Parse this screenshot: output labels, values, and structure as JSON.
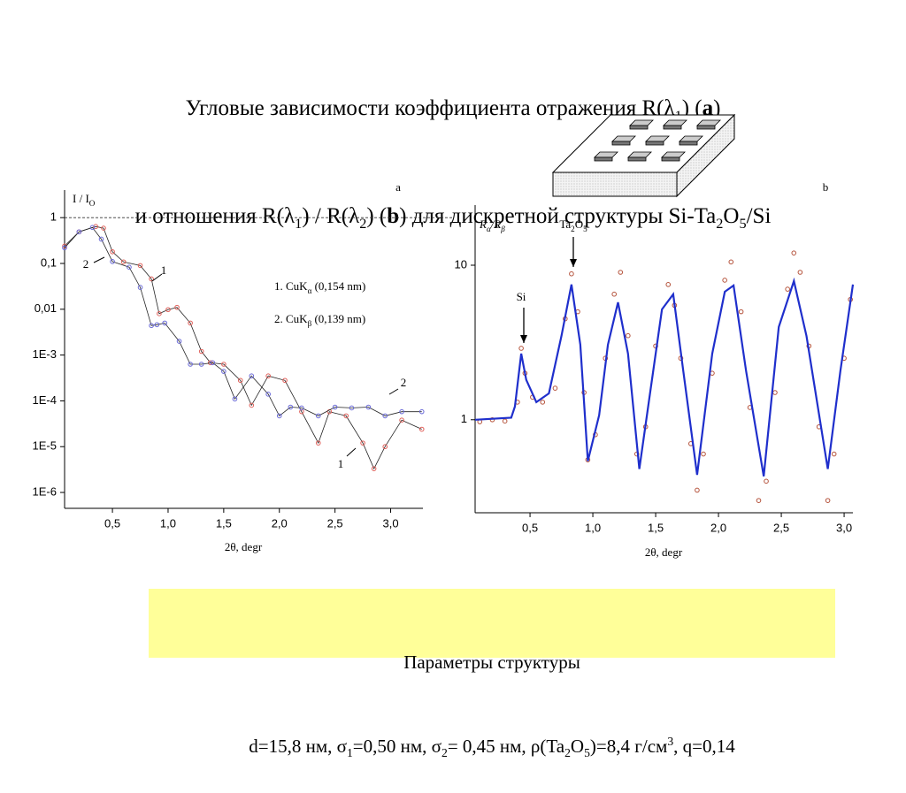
{
  "title": {
    "line1": [
      "Угловые зависимости коэффициента отражения R(λ",
      "1",
      ") (",
      "a",
      ")"
    ],
    "line2": [
      "и отношения R(λ",
      "1",
      ") / R(λ",
      "2",
      ") (",
      "b",
      ") для дискретной структуры Si-Ta",
      "2",
      "O",
      "5",
      "/Si"
    ]
  },
  "chart_data": [
    {
      "type": "line",
      "panel_label": "a",
      "y_label": [
        "I / I",
        "O"
      ],
      "x_label": "2θ, degr",
      "log_y": true,
      "xlim": [
        0.07,
        3.29
      ],
      "ylim": [
        4.5e-07,
        4
      ],
      "xticks": [
        {
          "value": 0.5,
          "label": "0,5"
        },
        {
          "value": 1.0,
          "label": "1,0"
        },
        {
          "value": 1.5,
          "label": "1,5"
        },
        {
          "value": 2.0,
          "label": "2,0"
        },
        {
          "value": 2.5,
          "label": "2,5"
        },
        {
          "value": 3.0,
          "label": "3,0"
        }
      ],
      "yticks": [
        1,
        {
          "value": 0.1,
          "label": "0,1"
        },
        {
          "value": 0.01,
          "label": "0,01"
        },
        {
          "value": 0.001,
          "label": "1E-3"
        },
        {
          "value": 0.0001,
          "label": "1E-4"
        },
        {
          "value": 1e-05,
          "label": "1E-5"
        },
        {
          "value": 1e-06,
          "label": "1E-6"
        }
      ],
      "reference_line": 1,
      "series": [
        {
          "name": [
            "1. CuK",
            "α",
            " (0,154 nm)"
          ],
          "label": "1",
          "color": "#e0605a",
          "x": [
            0.07,
            0.2,
            0.35,
            0.42,
            0.5,
            0.6,
            0.75,
            0.85,
            0.92,
            1.0,
            1.08,
            1.2,
            1.3,
            1.38,
            1.5,
            1.65,
            1.75,
            1.9,
            2.05,
            2.2,
            2.35,
            2.45,
            2.6,
            2.75,
            2.85,
            2.95,
            3.1,
            3.28
          ],
          "values": [
            0.24,
            0.49,
            0.64,
            0.59,
            0.18,
            0.108,
            0.09,
            0.046,
            0.008,
            0.0098,
            0.011,
            0.005,
            0.0012,
            0.00068,
            0.00063,
            0.00028,
            8e-05,
            0.00035,
            0.00028,
            5.8e-05,
            1.2e-05,
            5.8e-05,
            4.7e-05,
            1.2e-05,
            3.3e-06,
            1e-05,
            3.8e-05,
            2.4e-05
          ]
        },
        {
          "name": [
            "2. CuK",
            "β",
            " (0,139 nm)"
          ],
          "label": "2",
          "color": "#6a6ad8",
          "x": [
            0.07,
            0.2,
            0.32,
            0.4,
            0.5,
            0.65,
            0.75,
            0.85,
            0.9,
            0.97,
            1.1,
            1.2,
            1.3,
            1.4,
            1.5,
            1.6,
            1.75,
            1.9,
            2.0,
            2.1,
            2.2,
            2.35,
            2.5,
            2.65,
            2.8,
            2.95,
            3.1,
            3.28
          ],
          "values": [
            0.22,
            0.49,
            0.61,
            0.34,
            0.11,
            0.083,
            0.03,
            0.0044,
            0.0046,
            0.005,
            0.002,
            0.00063,
            0.00063,
            0.00068,
            0.00044,
            0.00011,
            0.00035,
            0.00014,
            4.7e-05,
            7.3e-05,
            7e-05,
            4.7e-05,
            7.3e-05,
            7e-05,
            7.3e-05,
            4.7e-05,
            5.8e-05,
            5.8e-05
          ]
        }
      ]
    },
    {
      "type": "line",
      "panel_label": "b",
      "y_label": [
        "R",
        "α",
        "/R",
        "β"
      ],
      "x_label": "2θ, degr",
      "log_y": true,
      "xlim": [
        0.063,
        3.07
      ],
      "ylim": [
        0.25,
        24.5
      ],
      "xticks": [
        {
          "value": 0.5,
          "label": "0,5"
        },
        {
          "value": 1.0,
          "label": "1,0"
        },
        {
          "value": 1.5,
          "label": "1,5"
        },
        {
          "value": 2.0,
          "label": "2,0"
        },
        {
          "value": 2.5,
          "label": "2,5"
        },
        {
          "value": 3.0,
          "label": "3,0"
        }
      ],
      "yticks": [
        1,
        10
      ],
      "annotations": [
        [
          "Si"
        ],
        [
          "Ta",
          "2",
          "O",
          "5"
        ]
      ],
      "series": [
        {
          "type": "scatter",
          "color": "#b5533c",
          "x": [
            0.1,
            0.2,
            0.3,
            0.4,
            0.43,
            0.46,
            0.52,
            0.6,
            0.7,
            0.78,
            0.83,
            0.88,
            0.93,
            0.96,
            1.02,
            1.1,
            1.17,
            1.22,
            1.28,
            1.35,
            1.42,
            1.5,
            1.6,
            1.65,
            1.7,
            1.78,
            1.83,
            1.88,
            1.95,
            2.05,
            2.1,
            2.18,
            2.25,
            2.32,
            2.38,
            2.45,
            2.55,
            2.6,
            2.65,
            2.72,
            2.8,
            2.87,
            2.92,
            3.0,
            3.05
          ],
          "values": [
            0.97,
            1.0,
            0.98,
            1.3,
            2.9,
            2.0,
            1.4,
            1.3,
            1.6,
            4.5,
            8.8,
            5.0,
            1.5,
            0.55,
            0.8,
            2.5,
            6.5,
            9.0,
            3.5,
            0.6,
            0.9,
            3.0,
            7.5,
            5.5,
            2.5,
            0.7,
            0.35,
            0.6,
            2.0,
            8.0,
            10.5,
            5.0,
            1.2,
            0.3,
            0.4,
            1.5,
            7.0,
            12.0,
            9.0,
            3.0,
            0.9,
            0.3,
            0.6,
            2.5,
            6.0
          ]
        },
        {
          "type": "line",
          "color": "#1f2fcc",
          "x": [
            0.063,
            0.35,
            0.38,
            0.43,
            0.47,
            0.55,
            0.65,
            0.75,
            0.83,
            0.9,
            0.96,
            1.05,
            1.12,
            1.2,
            1.28,
            1.37,
            1.45,
            1.55,
            1.64,
            1.72,
            1.83,
            1.95,
            2.05,
            2.12,
            2.22,
            2.36,
            2.48,
            2.6,
            2.7,
            2.87,
            2.97,
            3.07
          ],
          "values": [
            1.0,
            1.03,
            1.22,
            2.68,
            1.81,
            1.3,
            1.48,
            3.49,
            7.5,
            3.06,
            0.54,
            1.07,
            3.06,
            5.75,
            2.68,
            0.48,
            1.39,
            5.18,
            6.49,
            2.06,
            0.44,
            2.68,
            6.74,
            7.4,
            2.06,
            0.43,
            3.98,
            7.9,
            3.49,
            0.48,
            2.06,
            7.5
          ]
        }
      ]
    }
  ],
  "params": {
    "heading": "Параметры структуры",
    "line": [
      "d=15,8 нм, σ",
      "1",
      "=0,50 нм, σ",
      "2",
      "= 0,45 нм, ρ(Ta",
      "2",
      "O",
      "5",
      ")=8,4 г/см",
      "3",
      ", q=0,14"
    ]
  }
}
